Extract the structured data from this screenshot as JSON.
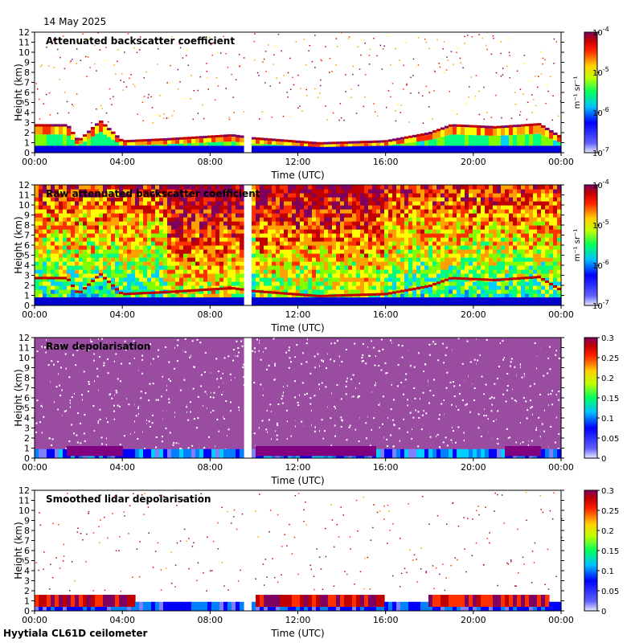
{
  "date": "14 May 2025",
  "footer": "Hyytiala CL61D ceilometer",
  "chart_data": [
    {
      "type": "heatmap",
      "title": "Attenuated backscatter coefficient",
      "xlabel": "Time (UTC)",
      "ylabel": "Height (km)",
      "x_ticks": [
        "00:00",
        "04:00",
        "08:00",
        "12:00",
        "16:00",
        "20:00",
        "00:00"
      ],
      "y_ticks": [
        "0",
        "1",
        "2",
        "3",
        "4",
        "5",
        "6",
        "7",
        "8",
        "9",
        "10",
        "11",
        "12"
      ],
      "ylim": [
        0,
        12
      ],
      "scale": "log",
      "colorbar_range": [
        "10",
        "-7",
        "10",
        "-4"
      ],
      "colorbar_ticks": [
        {
          "base": "10",
          "exp": "-4"
        },
        {
          "base": "10",
          "exp": "-5"
        },
        {
          "base": "10",
          "exp": "-6"
        },
        {
          "base": "10",
          "exp": "-7"
        }
      ],
      "colorbar_unit": "m⁻¹ sr⁻¹",
      "data_gap_hours": [
        9.6,
        9.95
      ],
      "cloud_base_km": [
        [
          0,
          2.6
        ],
        [
          1.5,
          2.6
        ],
        [
          2,
          1.0
        ],
        [
          3,
          3.0
        ],
        [
          4,
          1.0
        ],
        [
          6,
          1.2
        ],
        [
          9,
          1.6
        ],
        [
          10,
          1.3
        ],
        [
          13,
          0.8
        ],
        [
          16,
          1.0
        ],
        [
          18,
          1.8
        ],
        [
          19,
          2.6
        ],
        [
          21,
          2.4
        ],
        [
          23,
          2.7
        ],
        [
          24,
          1.4
        ]
      ]
    },
    {
      "type": "heatmap",
      "title": "Raw attenuated backscatter coefficient",
      "xlabel": "Time (UTC)",
      "ylabel": "Height (km)",
      "x_ticks": [
        "00:00",
        "04:00",
        "08:00",
        "12:00",
        "16:00",
        "20:00",
        "00:00"
      ],
      "y_ticks": [
        "0",
        "1",
        "2",
        "3",
        "4",
        "5",
        "6",
        "7",
        "8",
        "9",
        "10",
        "11",
        "12"
      ],
      "ylim": [
        0,
        12
      ],
      "scale": "log",
      "colorbar_ticks": [
        {
          "base": "10",
          "exp": "-4"
        },
        {
          "base": "10",
          "exp": "-5"
        },
        {
          "base": "10",
          "exp": "-6"
        },
        {
          "base": "10",
          "exp": "-7"
        }
      ],
      "colorbar_unit": "m⁻¹ sr⁻¹",
      "data_gap_hours": [
        9.6,
        9.95
      ]
    },
    {
      "type": "heatmap",
      "title": "Raw depolarisation",
      "xlabel": "Time (UTC)",
      "ylabel": "Height (km)",
      "x_ticks": [
        "00:00",
        "04:00",
        "08:00",
        "12:00",
        "16:00",
        "20:00",
        "00:00"
      ],
      "y_ticks": [
        "0",
        "1",
        "2",
        "3",
        "4",
        "5",
        "6",
        "7",
        "8",
        "9",
        "10",
        "11",
        "12"
      ],
      "ylim": [
        0,
        12
      ],
      "colorbar_range": [
        0,
        0.3
      ],
      "colorbar_ticks": [
        "0.3",
        "0.25",
        "0.2",
        "0.15",
        "0.1",
        "0.05",
        "0"
      ],
      "data_gap_hours": [
        9.6,
        9.95
      ]
    },
    {
      "type": "heatmap",
      "title": "Smoothed lidar depolarisation",
      "xlabel": "Time (UTC)",
      "ylabel": "Height (km)",
      "x_ticks": [
        "00:00",
        "04:00",
        "08:00",
        "12:00",
        "16:00",
        "20:00",
        "00:00"
      ],
      "y_ticks": [
        "0",
        "1",
        "2",
        "3",
        "4",
        "5",
        "6",
        "7",
        "8",
        "9",
        "10",
        "11",
        "12"
      ],
      "ylim": [
        0,
        12
      ],
      "colorbar_range": [
        0,
        0.3
      ],
      "colorbar_ticks": [
        "0.3",
        "0.25",
        "0.2",
        "0.15",
        "0.1",
        "0.05",
        "0"
      ],
      "data_gap_hours": [
        9.6,
        9.95
      ]
    }
  ]
}
